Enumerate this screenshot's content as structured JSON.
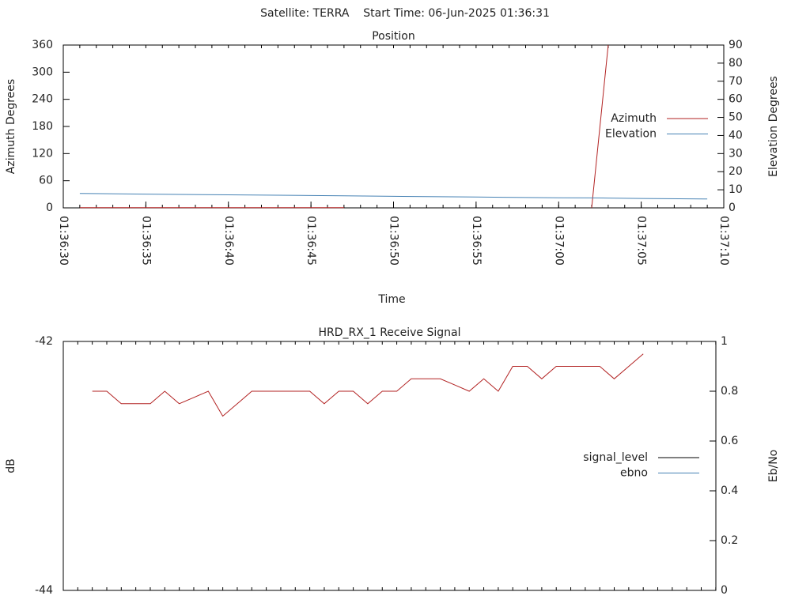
{
  "header": "Satellite: TERRA    Start Time: 06-Jun-2025 01:36:31",
  "chart_data": [
    {
      "type": "line",
      "title": "Position",
      "x_label": "Time",
      "y_label": "Azimuth Degrees",
      "y2_label": "Elevation Degrees",
      "x": [
        "01:36:31",
        "01:36:35",
        "01:36:40",
        "01:36:45",
        "01:36:47",
        "01:36:50",
        "01:36:55",
        "01:37:00",
        "01:37:02",
        "01:37:03",
        "01:37:05",
        "01:37:09"
      ],
      "xlim": [
        "01:36:30",
        "01:37:10"
      ],
      "xticks": [
        "01:36:30",
        "01:36:35",
        "01:36:40",
        "01:36:45",
        "01:36:50",
        "01:36:55",
        "01:37:00",
        "01:37:05",
        "01:37:10"
      ],
      "ylim": [
        0,
        360
      ],
      "yticks": [
        0,
        60,
        120,
        180,
        240,
        300,
        360
      ],
      "y2lim": [
        0,
        90
      ],
      "y2ticks": [
        0,
        10,
        20,
        30,
        40,
        50,
        60,
        70,
        80,
        90
      ],
      "series": [
        {
          "name": "Azimuth",
          "color": "#b22222",
          "values": [
            0.5,
            0.5,
            0.5,
            0.5,
            0.5,
            null,
            null,
            null,
            0,
            360,
            null,
            null
          ]
        },
        {
          "name": "Elevation",
          "color": "#4682b4",
          "axis": "y2",
          "values": [
            8,
            7.6,
            7.2,
            6.8,
            6.7,
            6.4,
            6,
            5.6,
            5.5,
            5.4,
            5.2,
            4.9
          ]
        }
      ]
    },
    {
      "type": "line",
      "title": "HRD_RX_1 Receive Signal",
      "y_label": "dB",
      "y2_label": "Eb/No",
      "ylim": [
        -44,
        -42
      ],
      "yticks": [
        -44,
        -42
      ],
      "y2lim": [
        0,
        1
      ],
      "y2ticks": [
        0,
        0.2,
        0.4,
        0.6,
        0.8,
        1
      ],
      "series": [
        {
          "name": "signal_level",
          "color": "#000000"
        },
        {
          "name": "ebno",
          "color": "#4682b4",
          "line_color": "#b22222",
          "axis": "y2",
          "values": [
            0.8,
            0.8,
            0.75,
            0.75,
            0.75,
            0.8,
            0.75,
            0.775,
            0.8,
            0.7,
            0.75,
            0.8,
            0.8,
            0.8,
            0.8,
            0.8,
            0.75,
            0.8,
            0.8,
            0.75,
            0.8,
            0.8,
            0.85,
            0.85,
            0.85,
            0.825,
            0.8,
            0.85,
            0.8,
            0.9,
            0.9,
            0.85,
            0.9,
            0.9,
            0.9,
            0.9,
            0.85,
            0.9,
            0.95
          ]
        }
      ]
    }
  ]
}
